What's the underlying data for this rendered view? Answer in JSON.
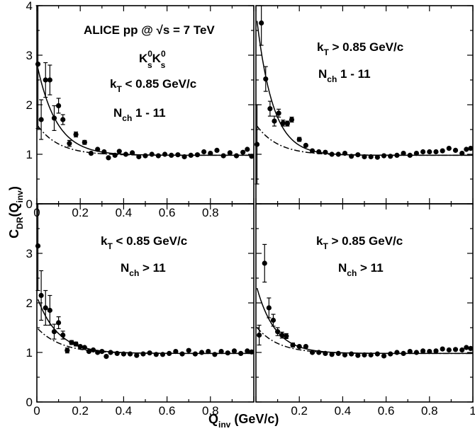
{
  "figure": {
    "ylabel": {
      "main": "C",
      "sub1": "DR",
      "mid": "(Q",
      "sub2": "inv",
      "end": ")"
    },
    "xlabel": {
      "main": "Q",
      "sub": "inv",
      "unit": " (GeV/c)"
    }
  },
  "chart_data": [
    {
      "type": "scatter",
      "panel": "top-left",
      "xlim": [
        0,
        1
      ],
      "ylim": [
        0,
        4
      ],
      "yticks": [
        "0",
        "1",
        "2",
        "3",
        "4"
      ],
      "xticks": [
        "0",
        "0.2",
        "0.4",
        "0.6",
        "0.8"
      ],
      "annotation": {
        "line1": "ALICE pp @ √s = 7 TeV",
        "line2": {
          "a": "K",
          "a_sup": "0",
          "a_sub": "s",
          "b": "K",
          "b_sup": "0",
          "b_sub": "s"
        },
        "line3": {
          "a": "k",
          "sub": "T",
          "b": " < 0.85 GeV/c"
        },
        "line4": {
          "a": "N",
          "sub": "ch",
          "b": "  1 - 11"
        }
      },
      "points": [
        {
          "x": 0.005,
          "y": 2.82,
          "err": 1.3
        },
        {
          "x": 0.02,
          "y": 1.7,
          "err": 0.4
        },
        {
          "x": 0.04,
          "y": 2.5,
          "err": 0.35
        },
        {
          "x": 0.06,
          "y": 2.5,
          "err": 0.3
        },
        {
          "x": 0.08,
          "y": 1.73,
          "err": 0.25
        },
        {
          "x": 0.1,
          "y": 1.98,
          "err": 0.15
        },
        {
          "x": 0.12,
          "y": 1.7,
          "err": 0.1
        },
        {
          "x": 0.15,
          "y": 1.22,
          "err": 0.06
        },
        {
          "x": 0.18,
          "y": 1.4,
          "err": 0.05
        },
        {
          "x": 0.22,
          "y": 1.24,
          "err": 0.04
        },
        {
          "x": 0.25,
          "y": 1.02,
          "err": 0.03
        },
        {
          "x": 0.28,
          "y": 1.1,
          "err": 0.03
        },
        {
          "x": 0.31,
          "y": 1.05,
          "err": 0.02
        },
        {
          "x": 0.33,
          "y": 0.93,
          "err": 0.02
        },
        {
          "x": 0.36,
          "y": 0.98,
          "err": 0.02
        },
        {
          "x": 0.38,
          "y": 1.06,
          "err": 0.02
        },
        {
          "x": 0.41,
          "y": 1.0,
          "err": 0.02
        },
        {
          "x": 0.44,
          "y": 1.03,
          "err": 0.02
        },
        {
          "x": 0.47,
          "y": 0.95,
          "err": 0.02
        },
        {
          "x": 0.5,
          "y": 0.97,
          "err": 0.02
        },
        {
          "x": 0.53,
          "y": 1.0,
          "err": 0.02
        },
        {
          "x": 0.56,
          "y": 0.97,
          "err": 0.02
        },
        {
          "x": 0.59,
          "y": 1.0,
          "err": 0.02
        },
        {
          "x": 0.62,
          "y": 0.98,
          "err": 0.02
        },
        {
          "x": 0.65,
          "y": 0.99,
          "err": 0.02
        },
        {
          "x": 0.68,
          "y": 0.95,
          "err": 0.02
        },
        {
          "x": 0.71,
          "y": 0.98,
          "err": 0.02
        },
        {
          "x": 0.74,
          "y": 0.99,
          "err": 0.02
        },
        {
          "x": 0.77,
          "y": 1.05,
          "err": 0.02
        },
        {
          "x": 0.8,
          "y": 1.02,
          "err": 0.02
        },
        {
          "x": 0.83,
          "y": 1.08,
          "err": 0.02
        },
        {
          "x": 0.86,
          "y": 0.97,
          "err": 0.02
        },
        {
          "x": 0.89,
          "y": 1.03,
          "err": 0.02
        },
        {
          "x": 0.92,
          "y": 0.97,
          "err": 0.02
        },
        {
          "x": 0.95,
          "y": 1.04,
          "err": 0.02
        },
        {
          "x": 0.97,
          "y": 1.1,
          "err": 0.02
        },
        {
          "x": 0.99,
          "y": 0.96,
          "err": 0.02
        }
      ],
      "fit_solid": {
        "base": 0.98,
        "amp": 1.85,
        "decay": 0.09
      },
      "fit_dashdot": {
        "base": 0.98,
        "amp": 0.62,
        "decay": 0.1
      }
    },
    {
      "type": "scatter",
      "panel": "top-right",
      "xlim": [
        0,
        1
      ],
      "ylim": [
        0,
        4
      ],
      "yticks": [],
      "xticks": [],
      "annotation": {
        "line3": {
          "a": "k",
          "sub": "T",
          "b": "  > 0.85 GeV/c"
        },
        "line4": {
          "a": "N",
          "sub": "ch",
          "b": "  1 - 11"
        }
      },
      "points": [
        {
          "x": 0.005,
          "y": 1.2,
          "err": 0.8
        },
        {
          "x": 0.025,
          "y": 3.65,
          "err": 0.45
        },
        {
          "x": 0.045,
          "y": 2.52,
          "err": 0.25
        },
        {
          "x": 0.065,
          "y": 1.92,
          "err": 0.15
        },
        {
          "x": 0.085,
          "y": 1.67,
          "err": 0.1
        },
        {
          "x": 0.105,
          "y": 1.83,
          "err": 0.08
        },
        {
          "x": 0.125,
          "y": 1.63,
          "err": 0.06
        },
        {
          "x": 0.145,
          "y": 1.62,
          "err": 0.05
        },
        {
          "x": 0.165,
          "y": 1.7,
          "err": 0.05
        },
        {
          "x": 0.2,
          "y": 1.3,
          "err": 0.04
        },
        {
          "x": 0.23,
          "y": 1.18,
          "err": 0.03
        },
        {
          "x": 0.26,
          "y": 1.07,
          "err": 0.03
        },
        {
          "x": 0.29,
          "y": 1.05,
          "err": 0.02
        },
        {
          "x": 0.32,
          "y": 1.04,
          "err": 0.02
        },
        {
          "x": 0.35,
          "y": 1.0,
          "err": 0.02
        },
        {
          "x": 0.38,
          "y": 1.0,
          "err": 0.02
        },
        {
          "x": 0.41,
          "y": 1.02,
          "err": 0.02
        },
        {
          "x": 0.44,
          "y": 0.96,
          "err": 0.02
        },
        {
          "x": 0.47,
          "y": 0.99,
          "err": 0.02
        },
        {
          "x": 0.5,
          "y": 0.95,
          "err": 0.02
        },
        {
          "x": 0.53,
          "y": 0.95,
          "err": 0.02
        },
        {
          "x": 0.56,
          "y": 0.94,
          "err": 0.02
        },
        {
          "x": 0.59,
          "y": 0.97,
          "err": 0.02
        },
        {
          "x": 0.62,
          "y": 0.96,
          "err": 0.02
        },
        {
          "x": 0.65,
          "y": 0.98,
          "err": 0.02
        },
        {
          "x": 0.68,
          "y": 1.02,
          "err": 0.02
        },
        {
          "x": 0.71,
          "y": 0.98,
          "err": 0.02
        },
        {
          "x": 0.74,
          "y": 1.02,
          "err": 0.02
        },
        {
          "x": 0.77,
          "y": 1.05,
          "err": 0.02
        },
        {
          "x": 0.8,
          "y": 1.05,
          "err": 0.02
        },
        {
          "x": 0.83,
          "y": 1.05,
          "err": 0.02
        },
        {
          "x": 0.86,
          "y": 1.07,
          "err": 0.02
        },
        {
          "x": 0.89,
          "y": 1.12,
          "err": 0.02
        },
        {
          "x": 0.92,
          "y": 1.08,
          "err": 0.02
        },
        {
          "x": 0.95,
          "y": 1.02,
          "err": 0.02
        },
        {
          "x": 0.97,
          "y": 1.1,
          "err": 0.02
        },
        {
          "x": 0.99,
          "y": 1.12,
          "err": 0.02
        }
      ],
      "fit_solid": {
        "base": 0.98,
        "amp": 2.9,
        "decay": 0.075
      },
      "fit_dashdot": {
        "base": 0.98,
        "amp": 0.62,
        "decay": 0.1
      }
    },
    {
      "type": "scatter",
      "panel": "bottom-left",
      "xlim": [
        0,
        1
      ],
      "ylim": [
        0,
        4
      ],
      "yticks": [
        "0",
        "1",
        "2",
        "3"
      ],
      "xticks": [
        "0",
        "0.2",
        "0.4",
        "0.6",
        "0.8"
      ],
      "annotation": {
        "line3": {
          "a": "k",
          "sub": "T",
          "b": " < 0.85 GeV/c"
        },
        "line4": {
          "a": "N",
          "sub": "ch",
          "b": "  > 11"
        }
      },
      "points": [
        {
          "x": 0.005,
          "y": 3.15,
          "err": 0.9
        },
        {
          "x": 0.02,
          "y": 2.15,
          "err": 0.5
        },
        {
          "x": 0.04,
          "y": 1.9,
          "err": 0.35
        },
        {
          "x": 0.06,
          "y": 1.85,
          "err": 0.3
        },
        {
          "x": 0.08,
          "y": 1.42,
          "err": 0.15
        },
        {
          "x": 0.1,
          "y": 1.6,
          "err": 0.12
        },
        {
          "x": 0.12,
          "y": 1.35,
          "err": 0.08
        },
        {
          "x": 0.14,
          "y": 1.04,
          "err": 0.05
        },
        {
          "x": 0.16,
          "y": 1.2,
          "err": 0.04
        },
        {
          "x": 0.18,
          "y": 1.17,
          "err": 0.04
        },
        {
          "x": 0.2,
          "y": 1.12,
          "err": 0.03
        },
        {
          "x": 0.22,
          "y": 1.1,
          "err": 0.03
        },
        {
          "x": 0.24,
          "y": 1.02,
          "err": 0.02
        },
        {
          "x": 0.26,
          "y": 1.05,
          "err": 0.02
        },
        {
          "x": 0.28,
          "y": 1.0,
          "err": 0.02
        },
        {
          "x": 0.3,
          "y": 1.02,
          "err": 0.02
        },
        {
          "x": 0.32,
          "y": 0.92,
          "err": 0.02
        },
        {
          "x": 0.34,
          "y": 1.0,
          "err": 0.02
        },
        {
          "x": 0.37,
          "y": 0.98,
          "err": 0.02
        },
        {
          "x": 0.4,
          "y": 0.97,
          "err": 0.02
        },
        {
          "x": 0.43,
          "y": 0.97,
          "err": 0.02
        },
        {
          "x": 0.46,
          "y": 0.94,
          "err": 0.02
        },
        {
          "x": 0.49,
          "y": 0.97,
          "err": 0.02
        },
        {
          "x": 0.52,
          "y": 0.99,
          "err": 0.02
        },
        {
          "x": 0.55,
          "y": 0.96,
          "err": 0.02
        },
        {
          "x": 0.58,
          "y": 0.96,
          "err": 0.02
        },
        {
          "x": 0.61,
          "y": 0.98,
          "err": 0.02
        },
        {
          "x": 0.64,
          "y": 1.02,
          "err": 0.02
        },
        {
          "x": 0.67,
          "y": 0.97,
          "err": 0.02
        },
        {
          "x": 0.7,
          "y": 1.04,
          "err": 0.02
        },
        {
          "x": 0.73,
          "y": 0.97,
          "err": 0.02
        },
        {
          "x": 0.76,
          "y": 1.0,
          "err": 0.02
        },
        {
          "x": 0.79,
          "y": 1.02,
          "err": 0.02
        },
        {
          "x": 0.82,
          "y": 0.96,
          "err": 0.02
        },
        {
          "x": 0.85,
          "y": 1.02,
          "err": 0.02
        },
        {
          "x": 0.88,
          "y": 0.99,
          "err": 0.02
        },
        {
          "x": 0.91,
          "y": 1.03,
          "err": 0.02
        },
        {
          "x": 0.94,
          "y": 0.98,
          "err": 0.02
        },
        {
          "x": 0.97,
          "y": 1.03,
          "err": 0.02
        },
        {
          "x": 0.99,
          "y": 1.01,
          "err": 0.02
        }
      ],
      "fit_solid": {
        "base": 0.98,
        "amp": 1.15,
        "decay": 0.095
      },
      "fit_dashdot": {
        "base": 0.98,
        "amp": 0.52,
        "decay": 0.11
      }
    },
    {
      "type": "scatter",
      "panel": "bottom-right",
      "xlim": [
        0,
        1
      ],
      "ylim": [
        0,
        4
      ],
      "yticks": [],
      "xticks": [
        "0.2",
        "0.4",
        "0.6",
        "0.8",
        "1"
      ],
      "annotation": {
        "line3": {
          "a": "k",
          "sub": "T",
          "b": "  > 0.85 GeV/c"
        },
        "line4": {
          "a": "N",
          "sub": "ch",
          "b": "  > 11"
        }
      },
      "points": [
        {
          "x": 0.015,
          "y": 1.35,
          "err": 0.2
        },
        {
          "x": 0.04,
          "y": 2.8,
          "err": 0.38
        },
        {
          "x": 0.06,
          "y": 1.9,
          "err": 0.2
        },
        {
          "x": 0.08,
          "y": 1.65,
          "err": 0.12
        },
        {
          "x": 0.1,
          "y": 1.42,
          "err": 0.08
        },
        {
          "x": 0.12,
          "y": 1.35,
          "err": 0.06
        },
        {
          "x": 0.14,
          "y": 1.33,
          "err": 0.05
        },
        {
          "x": 0.17,
          "y": 1.15,
          "err": 0.04
        },
        {
          "x": 0.2,
          "y": 1.12,
          "err": 0.03
        },
        {
          "x": 0.23,
          "y": 1.12,
          "err": 0.03
        },
        {
          "x": 0.26,
          "y": 1.0,
          "err": 0.02
        },
        {
          "x": 0.29,
          "y": 1.0,
          "err": 0.02
        },
        {
          "x": 0.32,
          "y": 0.98,
          "err": 0.02
        },
        {
          "x": 0.35,
          "y": 0.96,
          "err": 0.02
        },
        {
          "x": 0.38,
          "y": 0.98,
          "err": 0.02
        },
        {
          "x": 0.41,
          "y": 0.95,
          "err": 0.02
        },
        {
          "x": 0.44,
          "y": 0.97,
          "err": 0.02
        },
        {
          "x": 0.47,
          "y": 0.94,
          "err": 0.02
        },
        {
          "x": 0.5,
          "y": 0.95,
          "err": 0.02
        },
        {
          "x": 0.53,
          "y": 0.95,
          "err": 0.02
        },
        {
          "x": 0.56,
          "y": 0.97,
          "err": 0.02
        },
        {
          "x": 0.59,
          "y": 0.93,
          "err": 0.02
        },
        {
          "x": 0.62,
          "y": 0.97,
          "err": 0.02
        },
        {
          "x": 0.65,
          "y": 1.0,
          "err": 0.02
        },
        {
          "x": 0.68,
          "y": 0.98,
          "err": 0.02
        },
        {
          "x": 0.71,
          "y": 1.02,
          "err": 0.02
        },
        {
          "x": 0.74,
          "y": 1.0,
          "err": 0.02
        },
        {
          "x": 0.77,
          "y": 1.03,
          "err": 0.02
        },
        {
          "x": 0.8,
          "y": 1.02,
          "err": 0.02
        },
        {
          "x": 0.83,
          "y": 1.03,
          "err": 0.02
        },
        {
          "x": 0.86,
          "y": 1.07,
          "err": 0.02
        },
        {
          "x": 0.89,
          "y": 1.05,
          "err": 0.02
        },
        {
          "x": 0.92,
          "y": 1.06,
          "err": 0.02
        },
        {
          "x": 0.95,
          "y": 1.05,
          "err": 0.02
        },
        {
          "x": 0.97,
          "y": 1.1,
          "err": 0.02
        },
        {
          "x": 0.99,
          "y": 1.08,
          "err": 0.02
        }
      ],
      "fit_solid": {
        "base": 0.98,
        "amp": 1.4,
        "decay": 0.085
      },
      "fit_dashdot": {
        "base": 0.98,
        "amp": 0.55,
        "decay": 0.1
      }
    }
  ]
}
